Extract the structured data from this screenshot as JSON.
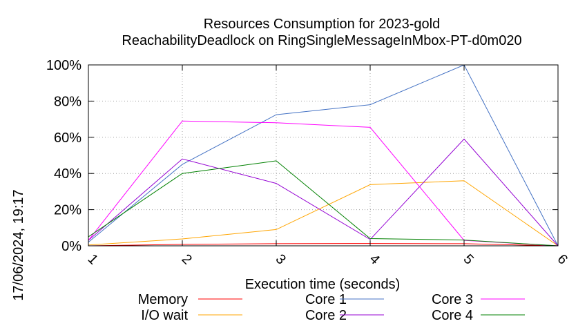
{
  "chart_data": {
    "type": "line",
    "title": "Resources Consumption for 2023-gold",
    "subtitle": "ReachabilityDeadlock on RingSingleMessageInMbox-PT-d0m020",
    "xlabel": "Execution time (seconds)",
    "ylabel": "",
    "side_label": "17/06/2024, 19:17",
    "xlim": [
      1,
      6
    ],
    "ylim": [
      0,
      100
    ],
    "x_ticks": [
      "1",
      "2",
      "3",
      "4",
      "5",
      "6"
    ],
    "y_ticks": [
      "0%",
      "20%",
      "40%",
      "60%",
      "80%",
      "100%"
    ],
    "grid": true,
    "legend_position": "bottom",
    "x": [
      1,
      2,
      3,
      4,
      5,
      6
    ],
    "series": [
      {
        "name": "Memory",
        "color": "#ff0000",
        "values": [
          0,
          0.8,
          1.2,
          1.3,
          1.2,
          0
        ]
      },
      {
        "name": "I/O wait",
        "color": "#ffa500",
        "values": [
          0.5,
          3.8,
          9,
          33.8,
          36,
          0
        ]
      },
      {
        "name": "Core 1",
        "color": "#4472c4",
        "values": [
          2,
          45,
          72.5,
          78,
          100,
          0
        ]
      },
      {
        "name": "Core 2",
        "color": "#9400d3",
        "values": [
          3,
          48,
          34.5,
          3.5,
          59,
          0
        ]
      },
      {
        "name": "Core 3",
        "color": "#ff00ff",
        "values": [
          3,
          69,
          68,
          65.5,
          3,
          0
        ]
      },
      {
        "name": "Core 4",
        "color": "#008000",
        "values": [
          5,
          40,
          47,
          4,
          3.2,
          0
        ]
      }
    ]
  }
}
